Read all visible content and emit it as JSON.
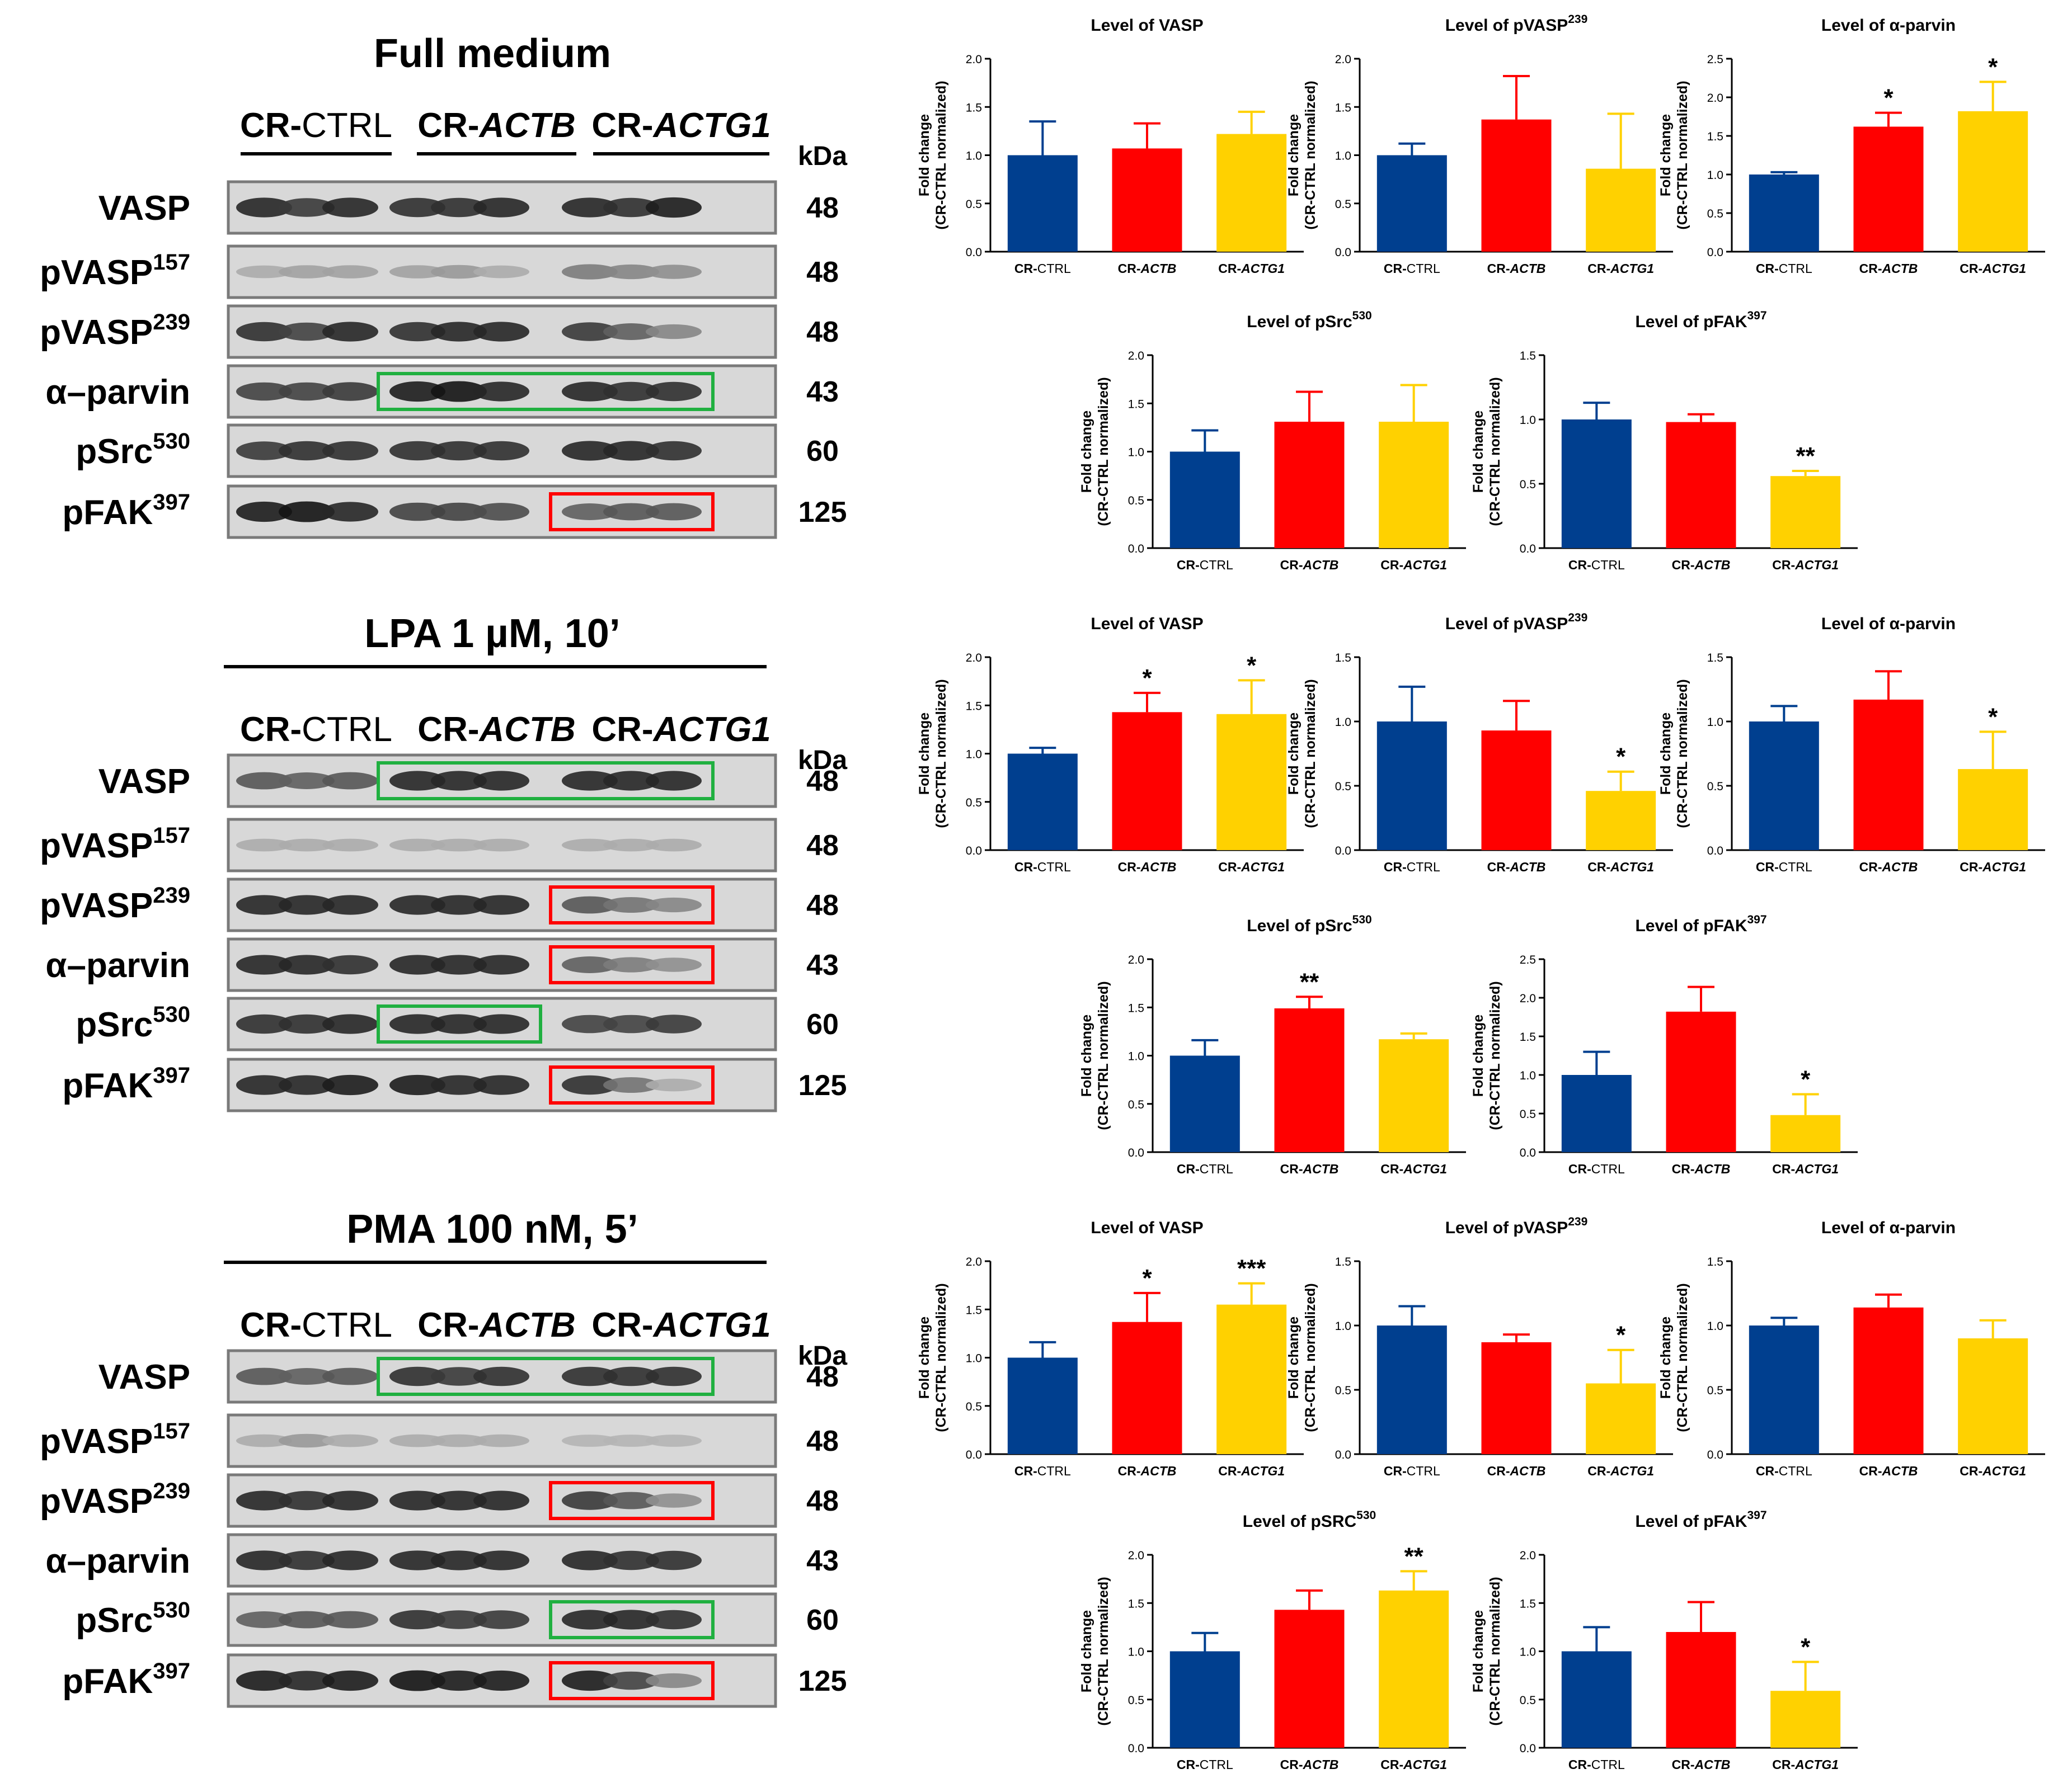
{
  "common": {
    "kda_label": "kDa",
    "groups": [
      {
        "prefix": "CR-",
        "name": "CTRL",
        "italic": false
      },
      {
        "prefix": "CR-",
        "name": "ACTB",
        "italic": true
      },
      {
        "prefix": "CR-",
        "name": "ACTG1",
        "italic": true
      }
    ],
    "y_label_line1": "Fold change",
    "y_label_line2": "(CR-CTRL normalized)",
    "bar_colors": [
      "#003f8f",
      "#ff0000",
      "#ffd100"
    ]
  },
  "blots": [
    {
      "title": "Full medium",
      "rows": [
        {
          "label": "VASP",
          "sup": "",
          "kda": "48"
        },
        {
          "label": "pVASP",
          "sup": "157",
          "kda": "48"
        },
        {
          "label": "pVASP",
          "sup": "239",
          "kda": "48"
        },
        {
          "label": "α–parvin",
          "sup": "",
          "kda": "43"
        },
        {
          "label": "pSrc",
          "sup": "530",
          "kda": "60"
        },
        {
          "label": "pFAK",
          "sup": "397",
          "kda": "125"
        }
      ]
    },
    {
      "title": "LPA 1 µM, 10’",
      "rows": [
        {
          "label": "VASP",
          "sup": "",
          "kda": "48"
        },
        {
          "label": "pVASP",
          "sup": "157",
          "kda": "48"
        },
        {
          "label": "pVASP",
          "sup": "239",
          "kda": "48"
        },
        {
          "label": "α–parvin",
          "sup": "",
          "kda": "43"
        },
        {
          "label": "pSrc",
          "sup": "530",
          "kda": "60"
        },
        {
          "label": "pFAK",
          "sup": "397",
          "kda": "125"
        }
      ]
    },
    {
      "title": "PMA 100 nM, 5’",
      "rows": [
        {
          "label": "VASP",
          "sup": "",
          "kda": "48"
        },
        {
          "label": "pVASP",
          "sup": "157",
          "kda": "48"
        },
        {
          "label": "pVASP",
          "sup": "239",
          "kda": "48"
        },
        {
          "label": "α–parvin",
          "sup": "",
          "kda": "43"
        },
        {
          "label": "pSrc",
          "sup": "530",
          "kda": "60"
        },
        {
          "label": "pFAK",
          "sup": "397",
          "kda": "125"
        }
      ]
    }
  ],
  "chart_data": [
    {
      "type": "bar",
      "title": "Level of VASP",
      "title_sup": "",
      "categories": [
        "CR-CTRL",
        "CR-ACTB",
        "CR-ACTG1"
      ],
      "values": [
        1.0,
        1.07,
        1.22
      ],
      "errors": [
        0.35,
        0.26,
        0.23
      ],
      "significance": [
        "",
        "",
        ""
      ],
      "ylim": [
        0,
        2.0
      ],
      "yticks": [
        0.0,
        0.5,
        1.0,
        1.5,
        2.0
      ]
    },
    {
      "type": "bar",
      "title": "Level of pVASP",
      "title_sup": "239",
      "categories": [
        "CR-CTRL",
        "CR-ACTB",
        "CR-ACTG1"
      ],
      "values": [
        1.0,
        1.37,
        0.86
      ],
      "errors": [
        0.12,
        0.45,
        0.57
      ],
      "significance": [
        "",
        "",
        ""
      ],
      "ylim": [
        0,
        2.0
      ],
      "yticks": [
        0.0,
        0.5,
        1.0,
        1.5,
        2.0
      ]
    },
    {
      "type": "bar",
      "title": "Level of α-parvin",
      "title_sup": "",
      "categories": [
        "CR-CTRL",
        "CR-ACTB",
        "CR-ACTG1"
      ],
      "values": [
        1.0,
        1.62,
        1.82
      ],
      "errors": [
        0.03,
        0.18,
        0.38
      ],
      "significance": [
        "",
        "*",
        "*"
      ],
      "ylim": [
        0,
        2.5
      ],
      "yticks": [
        0.0,
        0.5,
        1.0,
        1.5,
        2.0,
        2.5
      ]
    },
    {
      "type": "bar",
      "title": "Level of pSrc",
      "title_sup": "530",
      "categories": [
        "CR-CTRL",
        "CR-ACTB",
        "CR-ACTG1"
      ],
      "values": [
        1.0,
        1.31,
        1.31
      ],
      "errors": [
        0.22,
        0.31,
        0.38
      ],
      "significance": [
        "",
        "",
        ""
      ],
      "ylim": [
        0,
        2.0
      ],
      "yticks": [
        0.0,
        0.5,
        1.0,
        1.5,
        2.0
      ]
    },
    {
      "type": "bar",
      "title": "Level of pFAK",
      "title_sup": "397",
      "categories": [
        "CR-CTRL",
        "CR-ACTB",
        "CR-ACTG1"
      ],
      "values": [
        1.0,
        0.98,
        0.56
      ],
      "errors": [
        0.13,
        0.06,
        0.04
      ],
      "significance": [
        "",
        "",
        "**"
      ],
      "ylim": [
        0,
        1.5
      ],
      "yticks": [
        0.0,
        0.5,
        1.0,
        1.5
      ]
    },
    {
      "type": "bar",
      "title": "Level of VASP",
      "title_sup": "",
      "categories": [
        "CR-CTRL",
        "CR-ACTB",
        "CR-ACTG1"
      ],
      "values": [
        1.0,
        1.43,
        1.41
      ],
      "errors": [
        0.06,
        0.2,
        0.35
      ],
      "significance": [
        "",
        "*",
        "*"
      ],
      "ylim": [
        0,
        2.0
      ],
      "yticks": [
        0.0,
        0.5,
        1.0,
        1.5,
        2.0
      ]
    },
    {
      "type": "bar",
      "title": "Level of pVASP",
      "title_sup": "239",
      "categories": [
        "CR-CTRL",
        "CR-ACTB",
        "CR-ACTG1"
      ],
      "values": [
        1.0,
        0.93,
        0.46
      ],
      "errors": [
        0.27,
        0.23,
        0.15
      ],
      "significance": [
        "",
        "",
        "*"
      ],
      "ylim": [
        0,
        1.5
      ],
      "yticks": [
        0.0,
        0.5,
        1.0,
        1.5
      ]
    },
    {
      "type": "bar",
      "title": "Level of α-parvin",
      "title_sup": "",
      "categories": [
        "CR-CTRL",
        "CR-ACTB",
        "CR-ACTG1"
      ],
      "values": [
        1.0,
        1.17,
        0.63
      ],
      "errors": [
        0.12,
        0.22,
        0.29
      ],
      "significance": [
        "",
        "",
        "*"
      ],
      "ylim": [
        0,
        1.5
      ],
      "yticks": [
        0.0,
        0.5,
        1.0,
        1.5
      ]
    },
    {
      "type": "bar",
      "title": "Level of pSrc",
      "title_sup": "530",
      "categories": [
        "CR-CTRL",
        "CR-ACTB",
        "CR-ACTG1"
      ],
      "values": [
        1.0,
        1.49,
        1.17
      ],
      "errors": [
        0.16,
        0.12,
        0.06
      ],
      "significance": [
        "",
        "**",
        ""
      ],
      "ylim": [
        0,
        2.0
      ],
      "yticks": [
        0.0,
        0.5,
        1.0,
        1.5,
        2.0
      ]
    },
    {
      "type": "bar",
      "title": "Level of pFAK",
      "title_sup": "397",
      "categories": [
        "CR-CTRL",
        "CR-ACTB",
        "CR-ACTG1"
      ],
      "values": [
        1.0,
        1.82,
        0.48
      ],
      "errors": [
        0.3,
        0.32,
        0.27
      ],
      "significance": [
        "",
        "",
        "*"
      ],
      "ylim": [
        0,
        2.5
      ],
      "yticks": [
        0.0,
        0.5,
        1.0,
        1.5,
        2.0,
        2.5
      ]
    },
    {
      "type": "bar",
      "title": "Level of VASP",
      "title_sup": "",
      "categories": [
        "CR-CTRL",
        "CR-ACTB",
        "CR-ACTG1"
      ],
      "values": [
        1.0,
        1.37,
        1.55
      ],
      "errors": [
        0.16,
        0.3,
        0.22
      ],
      "significance": [
        "",
        "*",
        "***"
      ],
      "ylim": [
        0,
        2.0
      ],
      "yticks": [
        0.0,
        0.5,
        1.0,
        1.5,
        2.0
      ]
    },
    {
      "type": "bar",
      "title": "Level of pVASP",
      "title_sup": "239",
      "categories": [
        "CR-CTRL",
        "CR-ACTB",
        "CR-ACTG1"
      ],
      "values": [
        1.0,
        0.87,
        0.55
      ],
      "errors": [
        0.15,
        0.06,
        0.26
      ],
      "significance": [
        "",
        "",
        "*"
      ],
      "ylim": [
        0,
        1.5
      ],
      "yticks": [
        0.0,
        0.5,
        1.0,
        1.5
      ]
    },
    {
      "type": "bar",
      "title": "Level of α-parvin",
      "title_sup": "",
      "categories": [
        "CR-CTRL",
        "CR-ACTB",
        "CR-ACTG1"
      ],
      "values": [
        1.0,
        1.14,
        0.9
      ],
      "errors": [
        0.06,
        0.1,
        0.14
      ],
      "significance": [
        "",
        "",
        ""
      ],
      "ylim": [
        0,
        1.5
      ],
      "yticks": [
        0.0,
        0.5,
        1.0,
        1.5
      ]
    },
    {
      "type": "bar",
      "title": "Level of pSRC",
      "title_sup": "530",
      "categories": [
        "CR-CTRL",
        "CR-ACTB",
        "CR-ACTG1"
      ],
      "values": [
        1.0,
        1.43,
        1.63
      ],
      "errors": [
        0.19,
        0.2,
        0.2
      ],
      "significance": [
        "",
        "",
        "**"
      ],
      "ylim": [
        0,
        2.0
      ],
      "yticks": [
        0.0,
        0.5,
        1.0,
        1.5,
        2.0
      ]
    },
    {
      "type": "bar",
      "title": "Level of pFAK",
      "title_sup": "397",
      "categories": [
        "CR-CTRL",
        "CR-ACTB",
        "CR-ACTG1"
      ],
      "values": [
        1.0,
        1.2,
        0.59
      ],
      "errors": [
        0.25,
        0.31,
        0.3
      ],
      "significance": [
        "",
        "",
        "*"
      ],
      "ylim": [
        0,
        2.0
      ],
      "yticks": [
        0.0,
        0.5,
        1.0,
        1.5,
        2.0
      ]
    }
  ]
}
